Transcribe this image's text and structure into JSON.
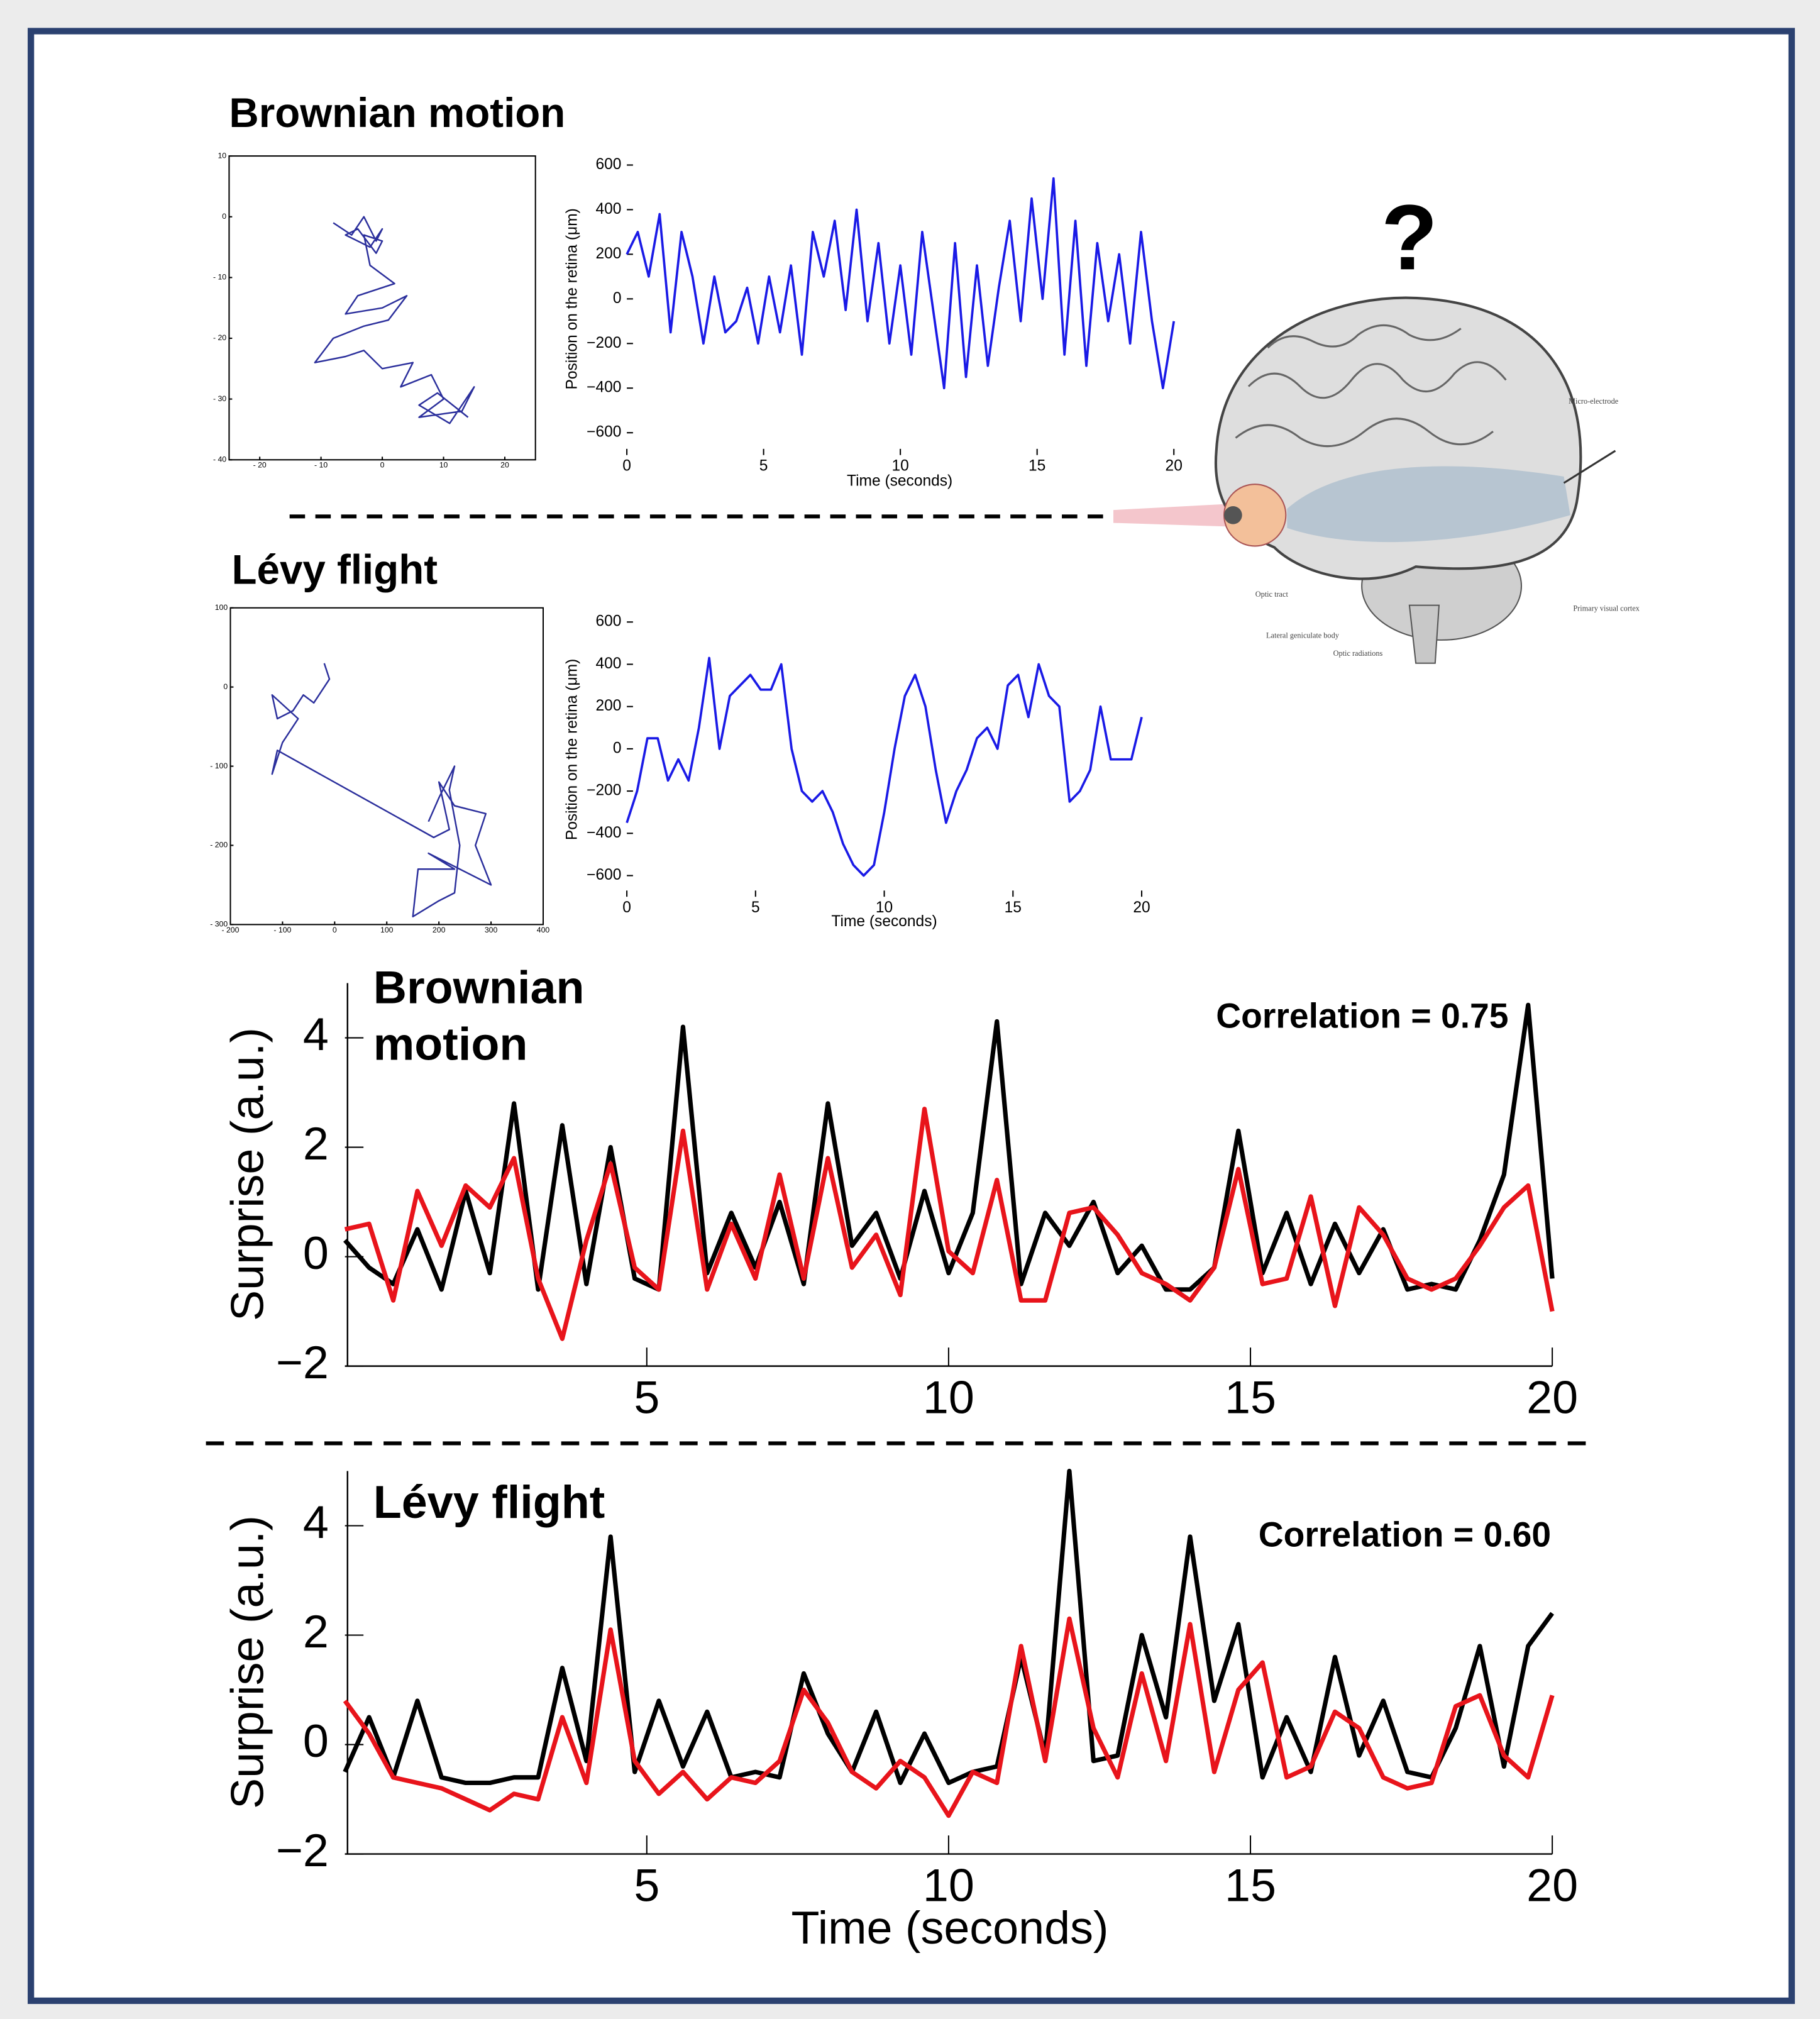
{
  "chart_data": [
    {
      "type": "line",
      "title": "Brownian motion",
      "frame": true,
      "color": "#2b2f9c",
      "x": [
        -8,
        -5,
        -3,
        -1,
        0,
        -2,
        -6,
        -4,
        -1,
        0,
        -3,
        -2,
        2,
        -4,
        -6,
        0,
        4,
        1,
        -3,
        -8,
        -11,
        -6,
        -3,
        0,
        5,
        3,
        8,
        10,
        6,
        13,
        15,
        11,
        6,
        9,
        14
      ],
      "values": [
        -1,
        -3,
        0,
        -4,
        -2,
        -5,
        -3,
        -2,
        -6,
        -4,
        -3,
        -8,
        -11,
        -13,
        -16,
        -15,
        -13,
        -17,
        -18,
        -20,
        -24,
        -23,
        -22,
        -25,
        -24,
        -28,
        -26,
        -30,
        -33,
        -32,
        -28,
        -34,
        -31,
        -29,
        -33
      ],
      "xlim": [
        -25,
        25
      ],
      "xticks": [
        {
          "value": -20,
          "label": "- 20"
        },
        {
          "value": -10,
          "label": "- 10"
        },
        0,
        10,
        20
      ],
      "ylim": [
        -40,
        10
      ],
      "yticks": [
        10,
        0,
        {
          "value": -10,
          "label": "- 10"
        },
        {
          "value": -20,
          "label": "- 20"
        },
        {
          "value": -30,
          "label": "- 30"
        },
        {
          "value": -40,
          "label": "- 40"
        }
      ]
    },
    {
      "type": "line",
      "color": "#1a1ae6",
      "xlabel": "Time (seconds)",
      "ylabel": "Position on the retina (μm)",
      "x": [
        0,
        0.4,
        0.8,
        1.2,
        1.6,
        2,
        2.4,
        2.8,
        3.2,
        3.6,
        4,
        4.4,
        4.8,
        5.2,
        5.6,
        6,
        6.4,
        6.8,
        7.2,
        7.6,
        8,
        8.4,
        8.8,
        9.2,
        9.6,
        10,
        10.4,
        10.8,
        11.2,
        11.6,
        12,
        12.4,
        12.8,
        13.2,
        13.6,
        14,
        14.4,
        14.8,
        15.2,
        15.6,
        16,
        16.4,
        16.8,
        17.2,
        17.6,
        18,
        18.4,
        18.8,
        19.2,
        19.6,
        20
      ],
      "values": [
        200,
        300,
        100,
        380,
        -150,
        300,
        100,
        -200,
        100,
        -150,
        -100,
        50,
        -200,
        100,
        -150,
        150,
        -250,
        300,
        100,
        350,
        -50,
        400,
        -100,
        250,
        -200,
        150,
        -250,
        300,
        -50,
        -400,
        250,
        -350,
        150,
        -300,
        50,
        350,
        -100,
        450,
        0,
        540,
        -250,
        350,
        -300,
        250,
        -100,
        200,
        -200,
        300,
        -100,
        -400,
        -100
      ],
      "xlim": [
        0,
        20
      ],
      "xticks": [
        0,
        5,
        10,
        15,
        20
      ],
      "ylim": [
        -700,
        700
      ],
      "yticks": [
        {
          "value": -600,
          "label": "−600"
        },
        {
          "value": -400,
          "label": "−400"
        },
        {
          "value": -200,
          "label": "−200"
        },
        0,
        200,
        400,
        600
      ]
    },
    {
      "type": "line",
      "title": "Lévy flight",
      "frame": true,
      "color": "#2b2f9c",
      "x": [
        -20,
        -10,
        -40,
        -60,
        -80,
        -110,
        -120,
        -70,
        -100,
        -120,
        -110,
        190,
        220,
        200,
        230,
        290,
        270,
        300,
        180,
        230,
        160,
        150,
        200,
        230,
        240,
        220,
        230,
        200,
        180
      ],
      "values": [
        30,
        10,
        -20,
        -10,
        -30,
        -40,
        -10,
        -40,
        -70,
        -110,
        -80,
        -190,
        -180,
        -120,
        -150,
        -160,
        -200,
        -250,
        -210,
        -230,
        -230,
        -290,
        -270,
        -260,
        -200,
        -130,
        -100,
        -140,
        -170
      ],
      "xlim": [
        -200,
        400
      ],
      "xticks": [
        {
          "value": -200,
          "label": "- 200"
        },
        {
          "value": -100,
          "label": "- 100"
        },
        0,
        100,
        200,
        300,
        400
      ],
      "ylim": [
        -300,
        100
      ],
      "yticks": [
        100,
        0,
        {
          "value": -100,
          "label": "- 100"
        },
        {
          "value": -200,
          "label": "- 200"
        },
        {
          "value": -300,
          "label": "- 300"
        }
      ]
    },
    {
      "type": "line",
      "color": "#1a1ae6",
      "xlabel": "Time (seconds)",
      "ylabel": "Position on the retina (μm)",
      "x": [
        0,
        0.4,
        0.8,
        1.2,
        1.6,
        2,
        2.4,
        2.8,
        3.2,
        3.6,
        4,
        4.4,
        4.8,
        5.2,
        5.6,
        6,
        6.4,
        6.8,
        7.2,
        7.6,
        8,
        8.4,
        8.8,
        9.2,
        9.6,
        10,
        10.4,
        10.8,
        11.2,
        11.6,
        12,
        12.4,
        12.8,
        13.2,
        13.6,
        14,
        14.4,
        14.8,
        15.2,
        15.6,
        16,
        16.4,
        16.8,
        17.2,
        17.6,
        18,
        18.4,
        18.8,
        19.2,
        19.6,
        20
      ],
      "values": [
        -350,
        -200,
        50,
        50,
        -150,
        -50,
        -150,
        100,
        430,
        0,
        250,
        300,
        350,
        280,
        280,
        400,
        0,
        -200,
        -250,
        -200,
        -300,
        -450,
        -550,
        -600,
        -550,
        -300,
        0,
        250,
        350,
        200,
        -100,
        -350,
        -200,
        -100,
        50,
        100,
        0,
        300,
        350,
        150,
        400,
        250,
        200,
        -250,
        -200,
        -100,
        200,
        -50,
        -50,
        -50,
        150
      ],
      "xlim": [
        0,
        20
      ],
      "xticks": [
        0,
        5,
        10,
        15,
        20
      ],
      "ylim": [
        -700,
        700
      ],
      "yticks": [
        {
          "value": -600,
          "label": "−600"
        },
        {
          "value": -400,
          "label": "−400"
        },
        {
          "value": -200,
          "label": "−200"
        },
        0,
        200,
        400,
        600
      ]
    },
    {
      "type": "line",
      "title": "Brownian motion",
      "annotation": "Correlation = 0.75",
      "axes": true,
      "ylabel": "Surprise (a.u.)",
      "x": [
        0,
        0.4,
        0.8,
        1.2,
        1.6,
        2,
        2.4,
        2.8,
        3.2,
        3.6,
        4,
        4.4,
        4.8,
        5.2,
        5.6,
        6,
        6.4,
        6.8,
        7.2,
        7.6,
        8,
        8.4,
        8.8,
        9.2,
        9.6,
        10,
        10.4,
        10.8,
        11.2,
        11.6,
        12,
        12.4,
        12.8,
        13.2,
        13.6,
        14,
        14.4,
        14.8,
        15.2,
        15.6,
        16,
        16.4,
        16.8,
        17.2,
        17.6,
        18,
        18.4,
        18.8,
        19.2,
        19.6,
        20
      ],
      "series": [
        {
          "color": "#000000",
          "values": [
            0.3,
            -0.2,
            -0.5,
            0.5,
            -0.6,
            1.2,
            -0.3,
            2.8,
            -0.6,
            2.4,
            -0.5,
            2.0,
            -0.4,
            -0.6,
            4.2,
            -0.3,
            0.8,
            -0.2,
            1.0,
            -0.5,
            2.8,
            0.2,
            0.8,
            -0.4,
            1.2,
            -0.3,
            0.8,
            4.3,
            -0.5,
            0.8,
            0.2,
            1.0,
            -0.3,
            0.2,
            -0.6,
            -0.6,
            -0.2,
            2.3,
            -0.3,
            0.8,
            -0.5,
            0.6,
            -0.3,
            0.5,
            -0.6,
            -0.5,
            -0.6,
            0.3,
            1.5,
            4.6,
            -0.4
          ]
        },
        {
          "color": "#e8141b",
          "values": [
            0.5,
            0.6,
            -0.8,
            1.2,
            0.2,
            1.3,
            0.9,
            1.8,
            -0.4,
            -1.5,
            0.3,
            1.7,
            -0.2,
            -0.6,
            2.3,
            -0.6,
            0.6,
            -0.4,
            1.5,
            -0.4,
            1.8,
            -0.2,
            0.4,
            -0.7,
            2.7,
            0.1,
            -0.3,
            1.4,
            -0.8,
            -0.8,
            0.8,
            0.9,
            0.4,
            -0.3,
            -0.5,
            -0.8,
            -0.2,
            1.6,
            -0.5,
            -0.4,
            1.1,
            -0.9,
            0.9,
            0.4,
            -0.4,
            -0.6,
            -0.4,
            0.2,
            0.9,
            1.3,
            -1.0
          ]
        }
      ],
      "xlim": [
        0,
        20
      ],
      "xticks": [
        5,
        10,
        15,
        20
      ],
      "ylim": [
        -2,
        5
      ],
      "yticks": [
        {
          "value": -2,
          "label": "−2"
        },
        0,
        2,
        4
      ]
    },
    {
      "type": "line",
      "title": "Lévy flight",
      "annotation": "Correlation = 0.60",
      "axes": true,
      "ylabel": "Surprise (a.u.)",
      "xlabel": "Time (seconds)",
      "x": [
        0,
        0.4,
        0.8,
        1.2,
        1.6,
        2,
        2.4,
        2.8,
        3.2,
        3.6,
        4,
        4.4,
        4.8,
        5.2,
        5.6,
        6,
        6.4,
        6.8,
        7.2,
        7.6,
        8,
        8.4,
        8.8,
        9.2,
        9.6,
        10,
        10.4,
        10.8,
        11.2,
        11.6,
        12,
        12.4,
        12.8,
        13.2,
        13.6,
        14,
        14.4,
        14.8,
        15.2,
        15.6,
        16,
        16.4,
        16.8,
        17.2,
        17.6,
        18,
        18.4,
        18.8,
        19.2,
        19.6,
        20
      ],
      "series": [
        {
          "color": "#000000",
          "values": [
            -0.5,
            0.5,
            -0.6,
            0.8,
            -0.6,
            -0.7,
            -0.7,
            -0.6,
            -0.6,
            1.4,
            -0.3,
            3.8,
            -0.5,
            0.8,
            -0.4,
            0.6,
            -0.6,
            -0.5,
            -0.6,
            1.3,
            0.2,
            -0.5,
            0.6,
            -0.7,
            0.2,
            -0.7,
            -0.5,
            -0.4,
            1.6,
            -0.2,
            5.0,
            -0.3,
            -0.2,
            2.0,
            0.5,
            3.8,
            0.8,
            2.2,
            -0.6,
            0.5,
            -0.5,
            1.6,
            -0.2,
            0.8,
            -0.5,
            -0.6,
            0.3,
            1.8,
            -0.4,
            1.8,
            2.4
          ]
        },
        {
          "color": "#e8141b",
          "values": [
            0.8,
            0.2,
            -0.6,
            -0.7,
            -0.8,
            -1.0,
            -1.2,
            -0.9,
            -1.0,
            0.5,
            -0.7,
            2.1,
            -0.3,
            -0.9,
            -0.5,
            -1.0,
            -0.6,
            -0.7,
            -0.3,
            1.0,
            0.4,
            -0.5,
            -0.8,
            -0.3,
            -0.6,
            -1.3,
            -0.5,
            -0.7,
            1.8,
            -0.3,
            2.3,
            0.3,
            -0.6,
            1.3,
            -0.3,
            2.2,
            -0.5,
            1.0,
            1.5,
            -0.6,
            -0.4,
            0.6,
            0.3,
            -0.6,
            -0.8,
            -0.7,
            0.7,
            0.9,
            -0.2,
            -0.6,
            0.9
          ]
        }
      ],
      "xlim": [
        0,
        20
      ],
      "xticks": [
        5,
        10,
        15,
        20
      ],
      "ylim": [
        -2,
        5
      ],
      "yticks": [
        {
          "value": -2,
          "label": "−2"
        },
        0,
        2,
        4
      ]
    }
  ],
  "illustration": {
    "question_mark": "?",
    "labels": [
      "Micro-electrode",
      "Optic tract",
      "Lateral geniculate body",
      "Optic radiations",
      "Primary visual cortex"
    ]
  }
}
